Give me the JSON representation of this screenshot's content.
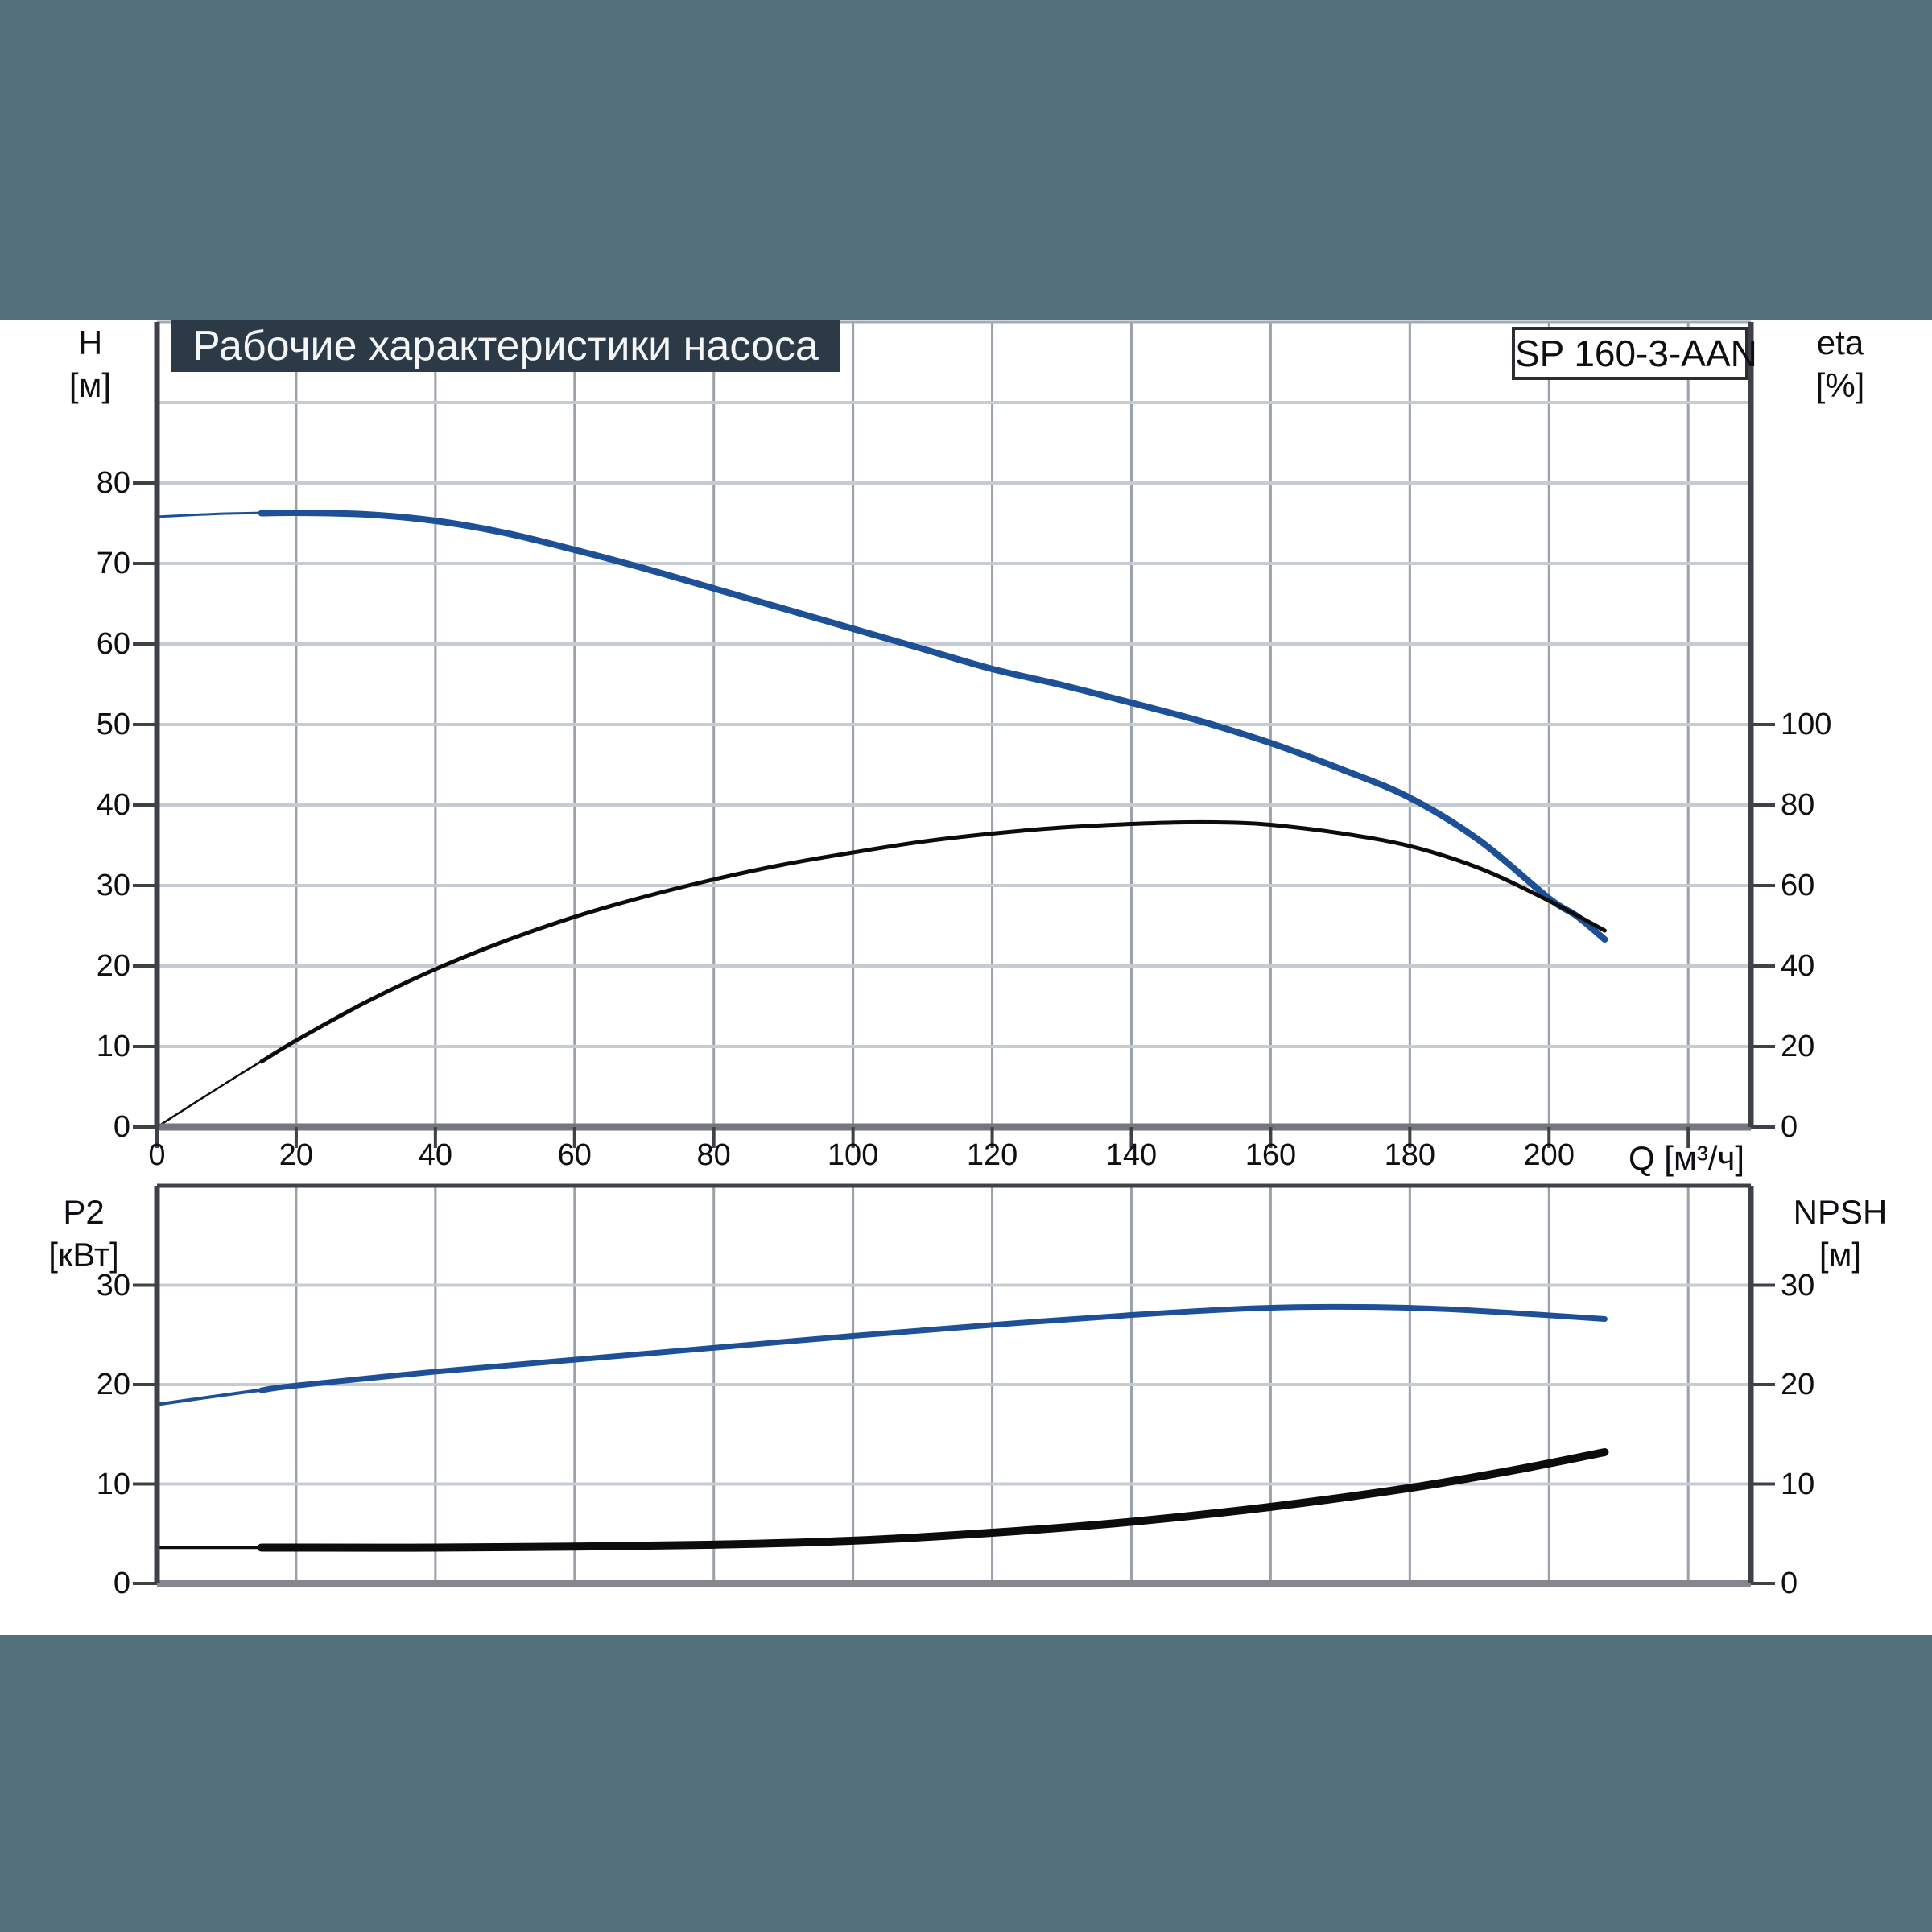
{
  "header": {
    "title": "Рабочие характеристики насоса",
    "model": "SP 160-3-AAN"
  },
  "colors": {
    "background_slate": "#536f7a",
    "panel_white": "#ffffff",
    "title_box_bg": "#2c3947",
    "grid_horizontal": "#c7ccd4",
    "grid_vertical": "#9ba1ab",
    "axis_dark": "#3e4147",
    "axis_x_gray": "#75777c",
    "curve_blue": "#1d5096",
    "curve_black": "#0c0c0c"
  },
  "chart_data": [
    {
      "type": "line",
      "name": "head-and-efficiency",
      "title": "Рабочие характеристики насоса",
      "x_axis": {
        "label": "Q [м³/ч]",
        "min": 0,
        "max": 229,
        "grid": [
          20,
          40,
          60,
          80,
          100,
          120,
          140,
          160,
          180,
          200,
          220
        ],
        "ticks": [
          0,
          20,
          40,
          60,
          80,
          100,
          120,
          140,
          160,
          180,
          200,
          220
        ],
        "tick_labels": [
          "0",
          "20",
          "40",
          "60",
          "80",
          "100",
          "120",
          "140",
          "160",
          "180",
          "200",
          ""
        ]
      },
      "left_axis": {
        "title": "H",
        "unit": "[м]",
        "min": 0,
        "max": 100,
        "grid": [
          10,
          20,
          30,
          40,
          50,
          60,
          70,
          80,
          90
        ],
        "ticks": [
          0,
          10,
          20,
          30,
          40,
          50,
          60,
          70,
          80
        ]
      },
      "right_axis": {
        "title": "eta",
        "unit": "[%]",
        "min": 0,
        "max": 200,
        "grid": [],
        "ticks": [
          0,
          20,
          40,
          60,
          80,
          100
        ]
      },
      "series": [
        {
          "name": "H",
          "axis": "left",
          "color": "#1d5096",
          "width_thin": 3,
          "width_thick": 8,
          "thick_from": 15,
          "points": [
            [
              0,
              75.8
            ],
            [
              10,
              76.2
            ],
            [
              20,
              76.3
            ],
            [
              30,
              76.1
            ],
            [
              40,
              75.3
            ],
            [
              50,
              73.8
            ],
            [
              60,
              71.7
            ],
            [
              70,
              69.4
            ],
            [
              80,
              66.9
            ],
            [
              90,
              64.4
            ],
            [
              100,
              61.9
            ],
            [
              110,
              59.4
            ],
            [
              120,
              56.9
            ],
            [
              130,
              54.9
            ],
            [
              140,
              52.7
            ],
            [
              150,
              50.4
            ],
            [
              160,
              47.7
            ],
            [
              170,
              44.5
            ],
            [
              180,
              40.9
            ],
            [
              190,
              35.6
            ],
            [
              200,
              28.4
            ],
            [
              204,
              26.2
            ],
            [
              208,
              23.3
            ]
          ]
        },
        {
          "name": "eta",
          "axis": "right",
          "color": "#0c0c0c",
          "width_thin": 2.5,
          "width_thick": 5,
          "thick_from": 15,
          "points": [
            [
              0,
              0
            ],
            [
              10,
              11
            ],
            [
              20,
              21.5
            ],
            [
              30,
              31
            ],
            [
              40,
              39.2
            ],
            [
              50,
              46.2
            ],
            [
              60,
              52.2
            ],
            [
              70,
              57.2
            ],
            [
              80,
              61.5
            ],
            [
              90,
              65.2
            ],
            [
              100,
              68.2
            ],
            [
              110,
              70.9
            ],
            [
              120,
              72.9
            ],
            [
              130,
              74.4
            ],
            [
              140,
              75.3
            ],
            [
              148,
              75.7
            ],
            [
              155,
              75.6
            ],
            [
              160,
              75.1
            ],
            [
              170,
              73.0
            ],
            [
              180,
              69.8
            ],
            [
              190,
              64.3
            ],
            [
              200,
              56.2
            ],
            [
              208,
              48.8
            ]
          ]
        }
      ]
    },
    {
      "type": "line",
      "name": "power-and-npsh",
      "x_axis": {
        "label": "",
        "min": 0,
        "max": 229,
        "grid": [
          20,
          40,
          60,
          80,
          100,
          120,
          140,
          160,
          180,
          200,
          220
        ],
        "ticks": [],
        "tick_labels": []
      },
      "left_axis": {
        "title": "P2",
        "unit": "[кВт]",
        "min": 0,
        "max": 40,
        "grid": [
          10,
          20,
          30
        ],
        "ticks": [
          0,
          10,
          20,
          30
        ]
      },
      "right_axis": {
        "title": "NPSH",
        "unit": "[м]",
        "min": 0,
        "max": 40,
        "grid": [],
        "ticks": [
          0,
          10,
          20,
          30
        ]
      },
      "series": [
        {
          "name": "P2",
          "axis": "left",
          "color": "#1d5096",
          "width_thin": 4,
          "width_thick": 7,
          "thick_from": 15,
          "points": [
            [
              0,
              18.0
            ],
            [
              20,
              19.9
            ],
            [
              40,
              21.3
            ],
            [
              60,
              22.5
            ],
            [
              80,
              23.7
            ],
            [
              100,
              24.9
            ],
            [
              120,
              26.0
            ],
            [
              140,
              27.0
            ],
            [
              155,
              27.6
            ],
            [
              165,
              27.8
            ],
            [
              175,
              27.8
            ],
            [
              185,
              27.6
            ],
            [
              195,
              27.2
            ],
            [
              208,
              26.6
            ]
          ]
        },
        {
          "name": "NPSH",
          "axis": "right",
          "color": "#0c0c0c",
          "width_thin": 3.5,
          "width_thick": 10,
          "thick_from": 15,
          "points": [
            [
              0,
              3.6
            ],
            [
              20,
              3.6
            ],
            [
              40,
              3.6
            ],
            [
              60,
              3.7
            ],
            [
              80,
              3.9
            ],
            [
              100,
              4.3
            ],
            [
              120,
              5.1
            ],
            [
              140,
              6.2
            ],
            [
              160,
              7.7
            ],
            [
              180,
              9.6
            ],
            [
              195,
              11.4
            ],
            [
              208,
              13.2
            ]
          ]
        }
      ]
    }
  ]
}
